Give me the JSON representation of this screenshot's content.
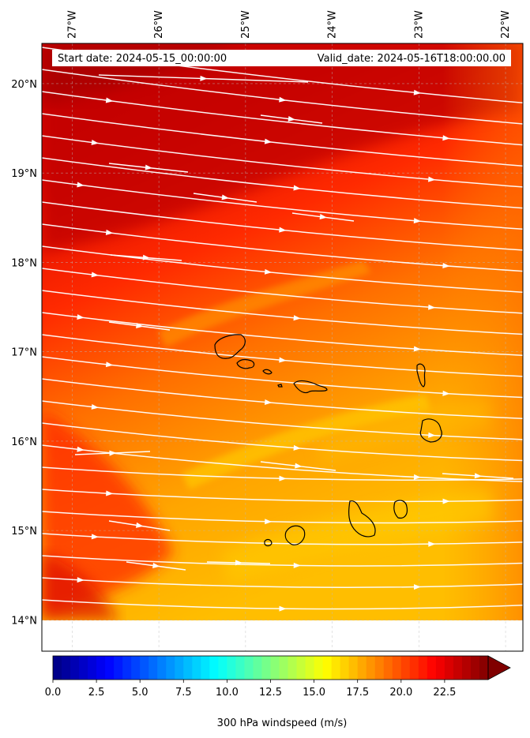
{
  "header": {
    "start_date": "Start date: 2024-05-15_00:00:00",
    "valid_date": "Valid_date: 2024-05-16T18:00:00.00"
  },
  "map": {
    "lon_range": [
      -27.35,
      -21.8
    ],
    "lat_range": [
      13.65,
      20.45
    ],
    "data_lat_min": 13.97,
    "lon_ticks": [
      {
        "value": -27,
        "label": "27°W"
      },
      {
        "value": -26,
        "label": "26°W"
      },
      {
        "value": -25,
        "label": "25°W"
      },
      {
        "value": -24,
        "label": "24°W"
      },
      {
        "value": -23,
        "label": "23°W"
      },
      {
        "value": -22,
        "label": "22°W"
      }
    ],
    "lat_ticks": [
      {
        "value": 20,
        "label": "20°N"
      },
      {
        "value": 19,
        "label": "19°N"
      },
      {
        "value": 18,
        "label": "18°N"
      },
      {
        "value": 17,
        "label": "17°N"
      },
      {
        "value": 16,
        "label": "16°N"
      },
      {
        "value": 15,
        "label": "15°N"
      },
      {
        "value": 14,
        "label": "14°N"
      }
    ],
    "fill_colors": {
      "high": "#c80000",
      "mid": "#ff3300",
      "low": "#ffaa00",
      "jet": "#ffd200"
    },
    "streamline_color": "#ffffff",
    "coastline_color": "#000000"
  },
  "colorbar": {
    "label": "300 hPa windspeed (m/s)",
    "min": 0,
    "max": 25,
    "extend": "max",
    "colormap": "jet-to-dark-red",
    "ticks": [
      {
        "value": 0,
        "label": "0.0"
      },
      {
        "value": 2.5,
        "label": "2.5"
      },
      {
        "value": 5,
        "label": "5.0"
      },
      {
        "value": 7.5,
        "label": "7.5"
      },
      {
        "value": 10,
        "label": "10.0"
      },
      {
        "value": 12.5,
        "label": "12.5"
      },
      {
        "value": 15,
        "label": "15.0"
      },
      {
        "value": 17.5,
        "label": "17.5"
      },
      {
        "value": 20,
        "label": "20.0"
      },
      {
        "value": 22.5,
        "label": "22.5"
      }
    ]
  }
}
